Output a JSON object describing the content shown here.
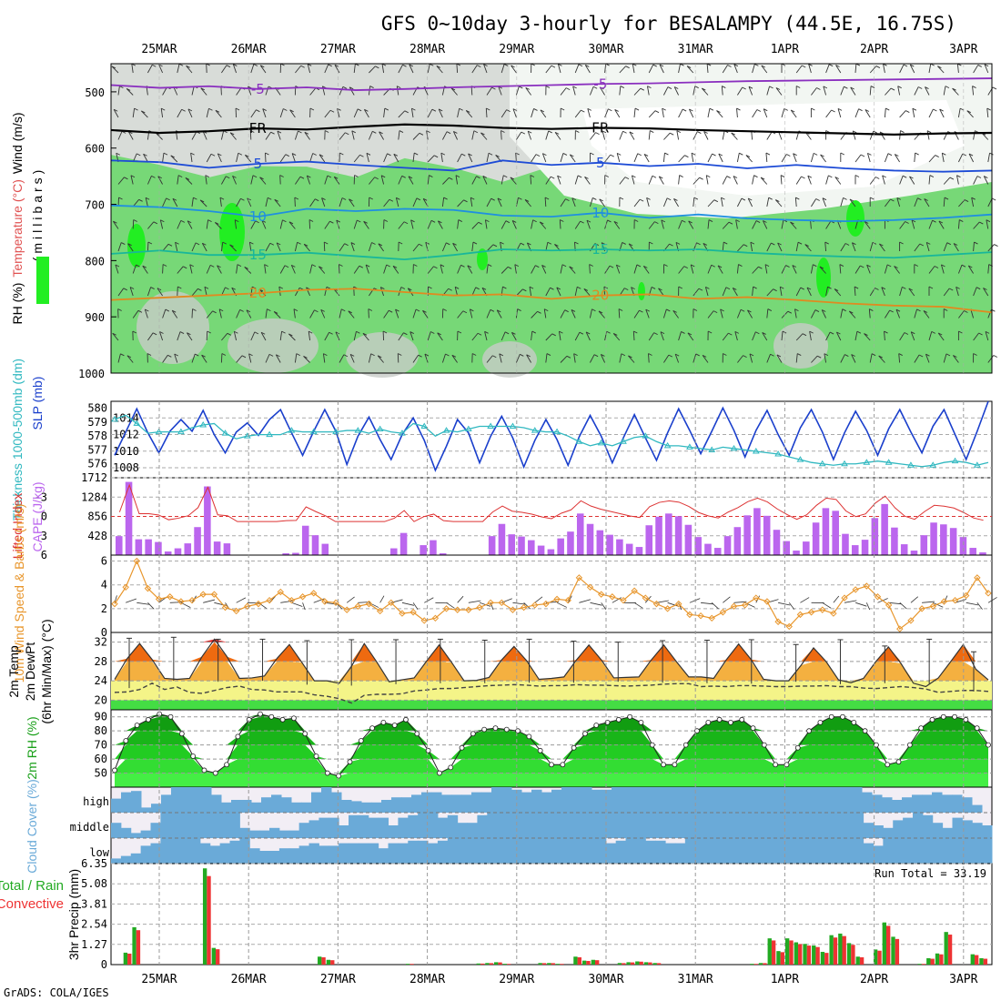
{
  "title": "GFS 0~10day 3-hourly for BESALAMPY (44.5E, 16.75S)",
  "credit": "GrADS: COLA/IGES",
  "dates": [
    "25MAR",
    "26MAR",
    "27MAR",
    "28MAR",
    "29MAR",
    "30MAR",
    "31MAR",
    "1APR",
    "2APR",
    "3APR"
  ],
  "colors": {
    "rh_light": "#77d877",
    "rh_bright": "#22ee22",
    "cloud_blue": "#6aaad8",
    "precip_total": "#22aa22",
    "precip_conv": "#ee3333",
    "cape_bar": "#bb66ee",
    "lifted": "#dd3333",
    "wind10": "#e8962c",
    "slp": "#1a3fcc",
    "thick": "#30b8c0"
  },
  "chart_data": [
    {
      "type": "heatmap",
      "panel": "upper_air",
      "ylabel": "(millibars)",
      "ylabels": [
        "RH (%)",
        "Temperature (°C)",
        "Wind (m/s)"
      ],
      "yticks": [
        500,
        600,
        700,
        800,
        900,
        1000
      ],
      "ylim": [
        1000,
        450
      ],
      "temperature_contours": [
        {
          "label": "-5",
          "level_mb": [
            488,
            493,
            490,
            495,
            492,
            497,
            495,
            492,
            490,
            488,
            486,
            485,
            483,
            481,
            480,
            479,
            478,
            477,
            476
          ]
        },
        {
          "label": "FR",
          "level_mb": [
            568,
            573,
            570,
            565,
            567,
            562,
            558,
            560,
            564,
            566,
            564,
            565,
            568,
            570,
            572,
            574,
            576,
            574,
            573
          ]
        },
        {
          "label": "5",
          "level_mb": [
            622,
            625,
            635,
            628,
            624,
            630,
            635,
            640,
            622,
            630,
            626,
            632,
            628,
            636,
            630,
            636,
            640,
            642,
            640
          ]
        },
        {
          "label": "10",
          "level_mb": [
            702,
            705,
            712,
            722,
            708,
            712,
            708,
            710,
            720,
            722,
            715,
            724,
            718,
            725,
            728,
            730,
            728,
            724,
            718
          ]
        },
        {
          "label": "15",
          "level_mb": [
            788,
            782,
            790,
            790,
            786,
            792,
            798,
            790,
            780,
            782,
            780,
            782,
            780,
            786,
            790,
            793,
            795,
            790,
            785
          ]
        },
        {
          "label": "20",
          "level_mb": [
            870,
            866,
            862,
            858,
            852,
            850,
            856,
            862,
            860,
            868,
            862,
            860,
            868,
            865,
            870,
            876,
            880,
            882,
            892
          ]
        }
      ]
    },
    {
      "type": "line",
      "panel": "slp_thickness",
      "ylabels": [
        "Thickness 1000-500mb (dm)",
        "SLP (mb)"
      ],
      "yticks_left": [
        576,
        577,
        578,
        579,
        580
      ],
      "yticks_right": [
        1008,
        1010,
        1012,
        1014
      ],
      "ylim_left": [
        575,
        580.5
      ],
      "ylim_right": [
        1006.8,
        1016
      ],
      "series": [
        {
          "role": "slp",
          "values": [
            1009.5,
            1012.3,
            1015.1,
            1012.2,
            1009.8,
            1012.4,
            1013.8,
            1012.4,
            1014.9,
            1012.0,
            1009.8,
            1012.3,
            1013.4,
            1011.9,
            1013.8,
            1015.0,
            1012.2,
            1009.5,
            1012.4,
            1015.0,
            1012.4,
            1008.4,
            1011.8,
            1014.1,
            1011.4,
            1009.0,
            1012.0,
            1014.0,
            1011.3,
            1007.7,
            1010.6,
            1013.8,
            1012.2,
            1008.6,
            1011.8,
            1014.2,
            1011.6,
            1008.1,
            1011.3,
            1013.8,
            1011.4,
            1008.3,
            1011.7,
            1014.3,
            1011.8,
            1008.6,
            1011.6,
            1014.4,
            1011.6,
            1008.9,
            1012.2,
            1015.1,
            1012.5,
            1009.7,
            1012.4,
            1015.2,
            1012.5,
            1009.3,
            1012.5,
            1014.9,
            1012.0,
            1009.5,
            1012.8,
            1015.0,
            1012.3,
            1009.0,
            1012.2,
            1014.8,
            1012.5,
            1009.5,
            1012.7,
            1015.0,
            1012.3,
            1009.8,
            1013.0,
            1015.0,
            1012.0,
            1009.0,
            1012.4,
            1016.0
          ]
        },
        {
          "role": "thick",
          "values": [
            579.2,
            579.5,
            578.9,
            578.2,
            578.3,
            578.3,
            578.3,
            578.6,
            578.8,
            578.9,
            578.2,
            577.8,
            578.0,
            578.1,
            578.1,
            578.1,
            578.4,
            578.3,
            578.3,
            578.3,
            578.3,
            578.4,
            578.4,
            578.2,
            578.5,
            578.3,
            578.2,
            578.9,
            578.7,
            578.0,
            578.4,
            578.3,
            578.5,
            578.7,
            578.7,
            578.7,
            578.7,
            578.6,
            578.4,
            578.3,
            578.3,
            578.0,
            577.6,
            577.3,
            577.5,
            577.3,
            577.6,
            577.9,
            578.0,
            577.6,
            577.3,
            577.3,
            577.2,
            577.1,
            577.0,
            577.2,
            577.1,
            577.0,
            576.9,
            576.8,
            576.7,
            576.5,
            576.3,
            576.1,
            576.0,
            575.9,
            576.0,
            576.0,
            576.1,
            576.2,
            576.1,
            576.0,
            575.9,
            575.8,
            575.9,
            576.1,
            576.2,
            576.1,
            575.9,
            576.1
          ]
        }
      ]
    },
    {
      "type": "bar",
      "panel": "lifted_cape",
      "ylabels": [
        "Lifted Index",
        "CAPE (J/kg)"
      ],
      "yticks_left": [
        -3,
        0,
        3,
        6
      ],
      "yticks_right": [
        428,
        856,
        1284,
        1712
      ],
      "ylim_right": [
        0,
        1712
      ],
      "cape": [
        420,
        1620,
        350,
        350,
        290,
        80,
        150,
        260,
        620,
        1520,
        300,
        260,
        0,
        0,
        0,
        0,
        0,
        40,
        50,
        650,
        440,
        250,
        0,
        0,
        0,
        0,
        0,
        0,
        150,
        490,
        0,
        220,
        330,
        40,
        0,
        0,
        0,
        0,
        420,
        690,
        460,
        410,
        330,
        210,
        130,
        370,
        520,
        920,
        690,
        550,
        450,
        350,
        250,
        180,
        660,
        850,
        920,
        860,
        670,
        400,
        250,
        160,
        420,
        620,
        880,
        1040,
        870,
        560,
        310,
        100,
        300,
        720,
        1040,
        980,
        470,
        220,
        340,
        820,
        1130,
        610,
        240,
        100,
        440,
        720,
        680,
        600,
        400,
        160,
        60
      ]
    },
    {
      "type": "line",
      "panel": "wind10m",
      "ylabels": [
        "10m Wind Speed & Barbs (m/s)"
      ],
      "yticks": [
        0,
        2,
        4,
        6
      ],
      "ylim": [
        0,
        6.5
      ],
      "values": [
        2.4,
        3.8,
        6.0,
        3.7,
        2.8,
        3.0,
        2.6,
        2.7,
        3.2,
        3.2,
        2.1,
        1.8,
        2.2,
        2.4,
        2.7,
        3.4,
        2.7,
        3.0,
        3.3,
        2.6,
        2.5,
        1.9,
        2.2,
        2.4,
        1.8,
        2.5,
        1.6,
        1.7,
        1.0,
        1.2,
        2.0,
        1.9,
        1.9,
        2.1,
        2.5,
        2.5,
        1.9,
        2.1,
        2.3,
        2.4,
        2.8,
        2.7,
        4.6,
        3.8,
        3.2,
        3.0,
        2.7,
        3.5,
        2.9,
        2.4,
        2.0,
        2.4,
        1.5,
        1.4,
        1.2,
        1.7,
        2.2,
        2.3,
        2.9,
        2.6,
        0.9,
        0.5,
        1.5,
        1.7,
        1.9,
        1.6,
        2.9,
        3.6,
        3.9,
        3.0,
        2.3,
        0.3,
        1.0,
        2.0,
        2.2,
        2.6,
        2.7,
        3.1,
        4.6,
        3.3
      ]
    },
    {
      "type": "area",
      "panel": "temp2m",
      "ylabels": [
        "2m Temp",
        "2m DewPt",
        "(6hr Min/Max) (°C)"
      ],
      "yticks": [
        20,
        24,
        28,
        32
      ],
      "ylim": [
        18,
        34
      ],
      "temp": [
        24.3,
        28.6,
        31.7,
        28.4,
        24.5,
        24.3,
        24.5,
        29.0,
        32.6,
        29.0,
        24.5,
        24.6,
        25.0,
        28.6,
        31.5,
        27.8,
        24.0,
        24.0,
        23.5,
        27.1,
        31.7,
        27.9,
        23.8,
        24.2,
        24.6,
        28.1,
        31.4,
        27.8,
        24.0,
        24.1,
        24.7,
        28.3,
        31.1,
        28.2,
        24.3,
        24.5,
        24.8,
        28.3,
        31.4,
        28.3,
        24.6,
        24.7,
        24.8,
        28.3,
        31.4,
        28.0,
        24.8,
        24.8,
        24.5,
        28.3,
        31.6,
        28.4,
        24.3,
        24.0,
        24.0,
        27.2,
        30.8,
        28.0,
        24.2,
        23.6,
        24.5,
        28.0,
        31.0,
        27.6,
        23.5,
        22.8,
        24.6,
        28.0,
        31.5,
        26.4,
        24.2
      ],
      "dewpt": [
        21.6,
        21.7,
        22.2,
        23.5,
        22.2,
        22.7,
        21.6,
        21.4,
        22.0,
        22.6,
        22.9,
        22.2,
        22.1,
        21.7,
        21.7,
        21.7,
        21.1,
        20.8,
        20.3,
        19.4,
        21.0,
        21.2,
        21.2,
        21.3,
        21.9,
        22.1,
        22.4,
        22.4,
        22.6,
        22.8,
        23.0,
        23.1,
        23.2,
        23.1,
        22.9,
        23.0,
        23.0,
        23.2,
        23.1,
        23.1,
        23.0,
        22.9,
        23.0,
        23.1,
        23.3,
        23.4,
        23.4,
        22.8,
        22.9,
        22.8,
        23.0,
        23.0,
        22.9,
        22.8,
        22.8,
        22.9,
        22.9,
        23.0,
        22.8,
        22.8,
        22.5,
        22.4,
        22.6,
        22.8,
        22.6,
        22.3,
        21.6,
        21.8,
        22.0,
        22.0,
        21.8
      ],
      "min": [
        22.5,
        24.0,
        23.8,
        24.0,
        23.2,
        23.0,
        23.3,
        23.5,
        23.5,
        23.6,
        23.6,
        23.8,
        23.6,
        23.5,
        23.4,
        23.8,
        23.3,
        23.5,
        23.4,
        21.8
      ],
      "max": [
        32.8,
        33.0,
        32.6,
        32.6,
        32.3,
        32.5,
        32.5,
        32.6,
        32.4,
        32.6,
        32.2,
        32.0,
        32.3,
        32.4,
        32.5,
        31.5,
        32.5,
        31.2,
        32.6,
        30.0
      ]
    },
    {
      "type": "area",
      "panel": "rh2m",
      "ylabels": [
        "2m RH (%)"
      ],
      "yticks": [
        50,
        60,
        70,
        80,
        90
      ],
      "ylim": [
        40,
        95
      ],
      "values": [
        52,
        73,
        84,
        88,
        92,
        90,
        78,
        62,
        52,
        50,
        56,
        76,
        88,
        92,
        90,
        88,
        89,
        78,
        62,
        50,
        48,
        58,
        73,
        82,
        86,
        84,
        88,
        78,
        66,
        50,
        54,
        68,
        78,
        81,
        82,
        81,
        80,
        76,
        66,
        56,
        56,
        68,
        78,
        84,
        86,
        88,
        90,
        86,
        70,
        56,
        56,
        70,
        80,
        86,
        88,
        86,
        88,
        82,
        70,
        56,
        56,
        68,
        80,
        86,
        90,
        90,
        86,
        80,
        70,
        56,
        58,
        70,
        82,
        88,
        90,
        90,
        88,
        82,
        70
      ]
    },
    {
      "type": "bar",
      "panel": "cloud_cover",
      "ylabels": [
        "Cloud Cover (%)"
      ],
      "rows": [
        "high",
        "middle",
        "low"
      ],
      "high": [
        55,
        80,
        85,
        20,
        35,
        70,
        100,
        100,
        100,
        100,
        70,
        40,
        50,
        50,
        40,
        60,
        70,
        60,
        40,
        40,
        80,
        100,
        80,
        50,
        45,
        40,
        40,
        50,
        60,
        60,
        70,
        80,
        80,
        70,
        70,
        70,
        80,
        80,
        100,
        100,
        90,
        80,
        90,
        80,
        90,
        100,
        100,
        100,
        90,
        90,
        100,
        100,
        100,
        100,
        100,
        100,
        100,
        100,
        100,
        100,
        100,
        100,
        100,
        100,
        100,
        100,
        100,
        100,
        100,
        100,
        100,
        100,
        100,
        100,
        100,
        80,
        70,
        60,
        50,
        60,
        70,
        70,
        80,
        70,
        70,
        60,
        30,
        0
      ],
      "middle": [
        60,
        40,
        20,
        30,
        60,
        100,
        100,
        100,
        100,
        100,
        100,
        100,
        100,
        40,
        30,
        30,
        40,
        30,
        30,
        60,
        70,
        80,
        80,
        50,
        90,
        90,
        80,
        80,
        50,
        80,
        90,
        100,
        100,
        80,
        90,
        60,
        60,
        90,
        100,
        100,
        100,
        100,
        100,
        100,
        100,
        100,
        100,
        100,
        100,
        100,
        100,
        100,
        100,
        100,
        100,
        100,
        100,
        100,
        100,
        100,
        100,
        100,
        100,
        100,
        100,
        100,
        100,
        100,
        100,
        100,
        100,
        100,
        100,
        100,
        100,
        100,
        60,
        50,
        40,
        70,
        80,
        100,
        90,
        60,
        40,
        80,
        70,
        60,
        50
      ],
      "low": [
        20,
        30,
        40,
        70,
        80,
        100,
        100,
        100,
        100,
        80,
        70,
        80,
        90,
        100,
        60,
        50,
        50,
        60,
        60,
        70,
        80,
        70,
        70,
        80,
        80,
        80,
        80,
        60,
        80,
        80,
        90,
        90,
        80,
        90,
        100,
        100,
        100,
        100,
        100,
        100,
        100,
        100,
        100,
        100,
        100,
        100,
        100,
        100,
        100,
        100,
        80,
        90,
        100,
        100,
        90,
        90,
        80,
        80,
        100,
        100,
        100,
        100,
        100,
        100,
        100,
        100,
        100,
        100,
        100,
        100,
        100,
        100,
        100,
        100,
        100,
        100,
        80,
        70,
        100,
        100,
        100,
        100,
        100,
        100,
        100,
        100,
        100,
        100,
        100
      ]
    },
    {
      "type": "bar",
      "panel": "precip",
      "ylabels": [
        "3hr Precip (mm)",
        "Total / Rain",
        "Convective"
      ],
      "yticks": [
        0,
        1.27,
        2.54,
        3.81,
        5.08,
        6.35
      ],
      "ylim": [
        0,
        6.35
      ],
      "annotation": "Run Total = 33.19",
      "total": [
        0,
        0.75,
        2.35,
        0,
        0,
        0,
        0,
        0,
        0,
        0,
        6.05,
        1.05,
        0,
        0,
        0,
        0,
        0,
        0,
        0,
        0,
        0,
        0,
        0,
        0.5,
        0.3,
        0,
        0,
        0,
        0,
        0,
        0,
        0,
        0,
        0.05,
        0,
        0,
        0,
        0,
        0,
        0,
        0,
        0.07,
        0.1,
        0.15,
        0.05,
        0,
        0,
        0,
        0.1,
        0.1,
        0.05,
        0,
        0.5,
        0.25,
        0.3,
        0,
        0,
        0.1,
        0.15,
        0.2,
        0.15,
        0.1,
        0,
        0,
        0,
        0,
        0,
        0,
        0,
        0,
        0,
        0,
        0.05,
        0.1,
        1.65,
        0.85,
        1.65,
        1.4,
        1.3,
        1.2,
        0.8,
        1.85,
        1.95,
        1.35,
        0.5,
        0,
        0.95,
        2.65,
        1.75,
        0,
        0,
        0.05,
        0.4,
        0.7,
        2.05,
        0,
        0,
        0.65,
        0.4
      ]
    }
  ]
}
